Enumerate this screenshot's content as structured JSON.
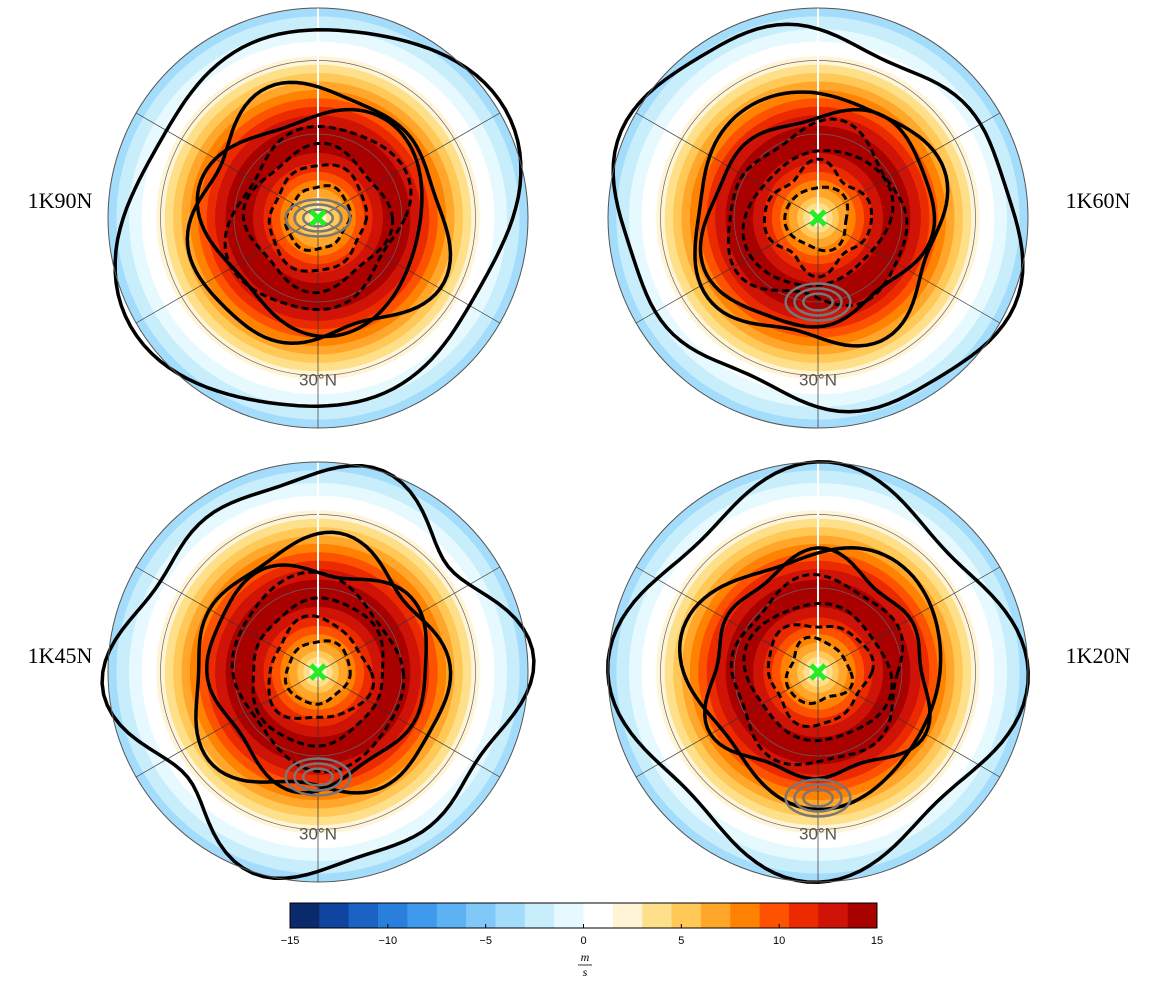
{
  "panels": [
    {
      "label": "1K90N",
      "lat_label": "30°N"
    },
    {
      "label": "1K60N",
      "lat_label": "30°N"
    },
    {
      "label": "1K45N",
      "lat_label": "30°N"
    },
    {
      "label": "1K20N",
      "lat_label": "30°N"
    }
  ],
  "chart_data": {
    "type": "colorbar",
    "xlim": [
      -15,
      15
    ],
    "xticks": [
      {
        "value": -15,
        "label": "−15"
      },
      {
        "value": -10,
        "label": "−10"
      },
      {
        "value": -5,
        "label": "−5"
      },
      0,
      5,
      10,
      15
    ],
    "colors": [
      "#0b2a6b",
      "#0f45a0",
      "#1a62c4",
      "#2a7fdc",
      "#3f99ec",
      "#5db2f4",
      "#7fc8f8",
      "#a4dcfb",
      "#c8eefc",
      "#e6f9fe",
      "#ffffff",
      "#fff4d6",
      "#ffe08a",
      "#ffc857",
      "#ffa62b",
      "#ff8200",
      "#ff5200",
      "#ec2a00",
      "#cf1306",
      "#a90000"
    ],
    "unit_numerator": "m",
    "unit_denominator": "s"
  }
}
